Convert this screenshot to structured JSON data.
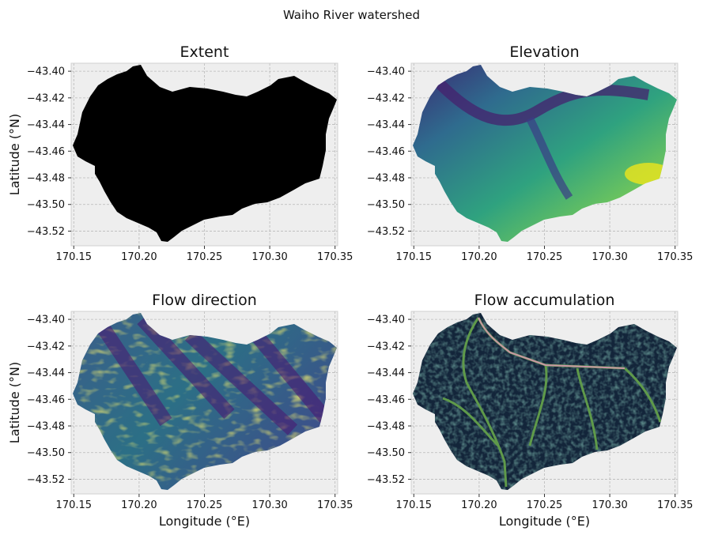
{
  "figure": {
    "suptitle": "Waiho River watershed"
  },
  "chart_data": [
    {
      "type": "heatmap",
      "title": "Extent",
      "xlabel": "",
      "ylabel": "Latitude (°N)",
      "xlim": [
        170.148,
        170.352
      ],
      "ylim": [
        -43.531,
        -43.394
      ],
      "xticks": [
        170.15,
        170.2,
        170.25,
        170.3,
        170.35
      ],
      "xtick_labels": [
        "170.15",
        "170.20",
        "170.25",
        "170.30",
        "170.35"
      ],
      "yticks": [
        -43.4,
        -43.42,
        -43.44,
        -43.46,
        -43.48,
        -43.5,
        -43.52
      ],
      "ytick_labels": [
        "−43.40",
        "−43.42",
        "−43.44",
        "−43.46",
        "−43.48",
        "−43.50",
        "−43.52"
      ],
      "grid": true,
      "colormap": "binary",
      "fill": "#000000"
    },
    {
      "type": "heatmap",
      "title": "Elevation",
      "xlabel": "",
      "ylabel": "",
      "xlim": [
        170.148,
        170.352
      ],
      "ylim": [
        -43.531,
        -43.394
      ],
      "xticks": [
        170.15,
        170.2,
        170.25,
        170.3,
        170.35
      ],
      "xtick_labels": [
        "170.15",
        "170.20",
        "170.25",
        "170.30",
        "170.35"
      ],
      "yticks": [
        -43.4,
        -43.42,
        -43.44,
        -43.46,
        -43.48,
        -43.5,
        -43.52
      ],
      "ytick_labels": [
        "−43.40",
        "−43.42",
        "−43.44",
        "−43.46",
        "−43.48",
        "−43.50",
        "−43.52"
      ],
      "grid": true,
      "colormap": "viridis",
      "colors": [
        "#440154",
        "#31688e",
        "#35b779",
        "#fde725"
      ]
    },
    {
      "type": "heatmap",
      "title": "Flow direction",
      "xlabel": "Longitude (°E)",
      "ylabel": "Latitude (°N)",
      "xlim": [
        170.148,
        170.352
      ],
      "ylim": [
        -43.531,
        -43.394
      ],
      "xticks": [
        170.15,
        170.2,
        170.25,
        170.3,
        170.35
      ],
      "xtick_labels": [
        "170.15",
        "170.20",
        "170.25",
        "170.30",
        "170.35"
      ],
      "yticks": [
        -43.4,
        -43.42,
        -43.44,
        -43.46,
        -43.48,
        -43.5,
        -43.52
      ],
      "ytick_labels": [
        "−43.40",
        "−43.42",
        "−43.44",
        "−43.46",
        "−43.48",
        "−43.50",
        "−43.52"
      ],
      "grid": true,
      "colormap": "viridis",
      "colors": [
        "#440154",
        "#31688e",
        "#35b779",
        "#fde725"
      ]
    },
    {
      "type": "heatmap",
      "title": "Flow accumulation",
      "xlabel": "Longitude (°E)",
      "ylabel": "",
      "xlim": [
        170.148,
        170.352
      ],
      "ylim": [
        -43.531,
        -43.394
      ],
      "xticks": [
        170.15,
        170.2,
        170.25,
        170.3,
        170.35
      ],
      "xtick_labels": [
        "170.15",
        "170.20",
        "170.25",
        "170.30",
        "170.35"
      ],
      "yticks": [
        -43.4,
        -43.42,
        -43.44,
        -43.46,
        -43.48,
        -43.5,
        -43.52
      ],
      "ytick_labels": [
        "−43.40",
        "−43.42",
        "−43.44",
        "−43.46",
        "−43.48",
        "−43.50",
        "−43.52"
      ],
      "grid": true,
      "colormap": "cubehelix",
      "colors": [
        "#0f1a2e",
        "#1f4e5a",
        "#3b8a4a",
        "#c98fa0"
      ]
    }
  ],
  "style": {
    "axes_background": "#eeeeee",
    "grid_color": "#b9b9b9"
  }
}
